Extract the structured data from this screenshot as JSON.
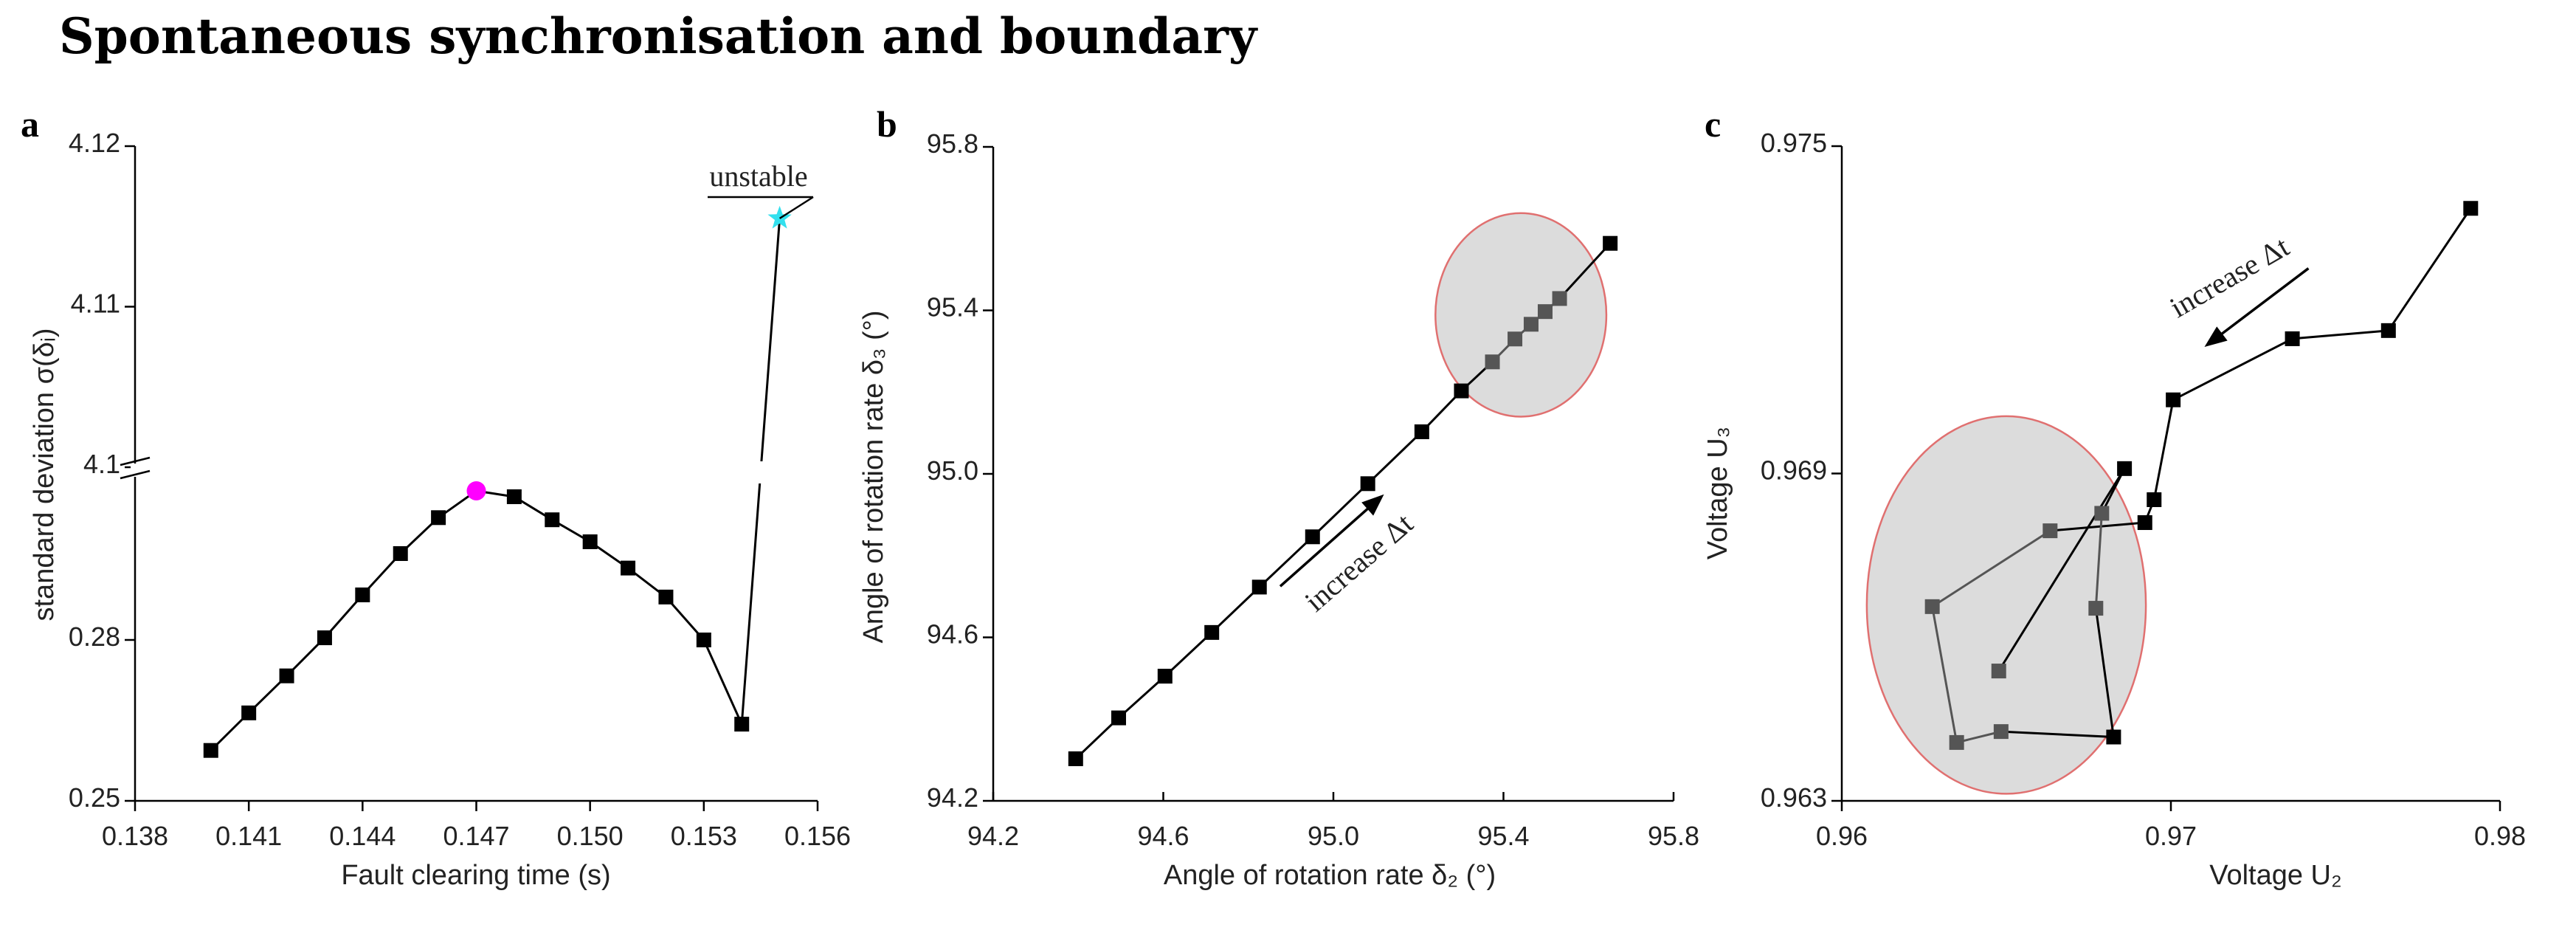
{
  "title": "Spontaneous synchronisation and boundary",
  "chart_data": [
    {
      "panel": "a",
      "type": "line",
      "xlabel": "Fault clearing time (s)",
      "ylabel": "standard deviation σ(δᵢ)",
      "xlim": [
        0.138,
        0.156
      ],
      "x_ticks": [
        "0.138",
        "0.141",
        "0.144",
        "0.147",
        "0.150",
        "0.153",
        "0.156"
      ],
      "y_ticks": [
        "0.25",
        "0.28",
        "4.1",
        "4.11",
        "4.12"
      ],
      "y_break": {
        "lower": [
          0.25,
          0.3112
        ],
        "upper": [
          4.1,
          4.12
        ]
      },
      "x": [
        0.14,
        0.141,
        0.142,
        0.143,
        0.144,
        0.145,
        0.146,
        0.147,
        0.148,
        0.149,
        0.15,
        0.151,
        0.152,
        0.153,
        0.154,
        0.155
      ],
      "y": [
        0.2594,
        0.2664,
        0.2733,
        0.2804,
        0.2884,
        0.2961,
        0.3028,
        0.3078,
        0.3067,
        0.3024,
        0.2983,
        0.2934,
        0.288,
        0.28,
        0.2643,
        4.1155
      ],
      "highlight": {
        "peak_index": 7,
        "peak_color": "#ff00ff",
        "unstable_index": 15,
        "unstable_color": "#33e0ee"
      },
      "annotation": "unstable"
    },
    {
      "panel": "b",
      "type": "line",
      "xlabel": "Angle of rotation rate δ₂ (°)",
      "ylabel": "Angle of rotation rate δ₃ (°)",
      "xlim": [
        94.2,
        95.8
      ],
      "ylim": [
        94.2,
        95.8
      ],
      "x_ticks": [
        "94.2",
        "94.6",
        "95.0",
        "95.4",
        "95.8"
      ],
      "y_ticks": [
        "94.2",
        "94.6",
        "95.0",
        "95.4",
        "95.8"
      ],
      "x": [
        94.394,
        94.495,
        94.604,
        94.714,
        94.826,
        94.951,
        95.081,
        95.208,
        95.301,
        95.374,
        95.427,
        95.465,
        95.498,
        95.532,
        95.651
      ],
      "y": [
        94.303,
        94.403,
        94.505,
        94.612,
        94.723,
        94.846,
        94.976,
        95.103,
        95.203,
        95.274,
        95.33,
        95.366,
        95.397,
        95.429,
        95.564
      ],
      "in_region": [
        false,
        false,
        false,
        false,
        false,
        false,
        false,
        false,
        false,
        true,
        true,
        true,
        true,
        true,
        false
      ],
      "region": {
        "cx": 95.441,
        "cy": 95.389,
        "rx": 0.201,
        "ry": 0.249
      },
      "arrow": {
        "from": [
          94.875,
          94.725
        ],
        "to": [
          95.119,
          94.95
        ]
      },
      "annotation": "increase Δt"
    },
    {
      "panel": "c",
      "type": "line",
      "xlabel": "Voltage U₂",
      "ylabel": "Voltage U₃",
      "xlim": [
        0.96,
        0.98
      ],
      "ylim": [
        0.963,
        0.975
      ],
      "x_ticks": [
        "0.96",
        "0.97",
        "0.98"
      ],
      "y_ticks": [
        "0.963",
        "0.969",
        "0.975"
      ],
      "x": [
        0.97911,
        0.97661,
        0.97369,
        0.97007,
        0.96949,
        0.96921,
        0.96633,
        0.96275,
        0.96349,
        0.96484,
        0.96826,
        0.96772,
        0.9679,
        0.96859,
        0.96477
      ],
      "y": [
        0.97386,
        0.97162,
        0.97147,
        0.97035,
        0.96852,
        0.9681,
        0.96795,
        0.96656,
        0.96407,
        0.96427,
        0.96417,
        0.96653,
        0.96827,
        0.96909,
        0.96538
      ],
      "in_region": [
        false,
        false,
        false,
        false,
        false,
        false,
        true,
        true,
        true,
        true,
        false,
        true,
        true,
        false,
        true
      ],
      "region": {
        "cx": 0.965,
        "cy": 0.96659,
        "rx": 0.00424,
        "ry": 0.00346
      },
      "arrow": {
        "from": [
          0.97418,
          0.97276
        ],
        "to": [
          0.97102,
          0.97132
        ]
      },
      "annotation": "increase Δt"
    }
  ],
  "colors": {
    "line": "#000000",
    "marker": "#000000",
    "marker_in_region": "#555555",
    "region_fill": "#dcdcdc",
    "region_stroke": "#e07070"
  }
}
